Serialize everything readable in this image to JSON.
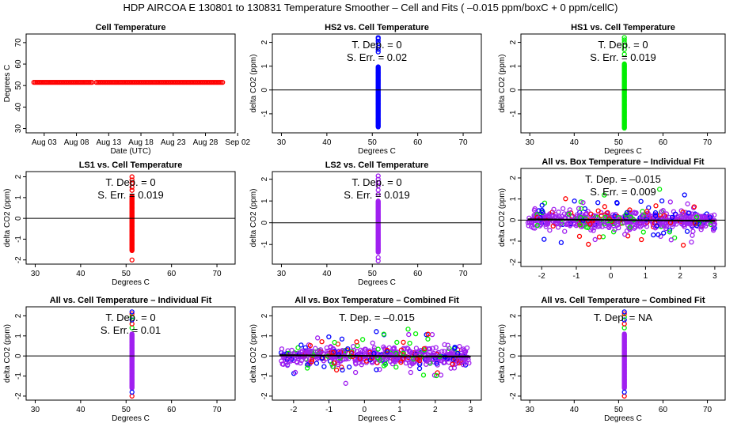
{
  "suptitle": "HDP   AIRCOA E   130801 to 130831   Temperature Smoother – Cell and Fits ( –0.015  ppm/boxC +  0  ppm/cellC)",
  "colors": {
    "red": "#ff0000",
    "blue": "#0000ff",
    "green": "#00ee00",
    "purple": "#a020f0",
    "axis": "#000000"
  },
  "chart_data": [
    {
      "type": "scatter",
      "title": "Cell Temperature",
      "xlabel": "Date (UTC)",
      "ylabel": "Degrees C",
      "x_ticks": [
        "Aug 03",
        "Aug 08",
        "Aug 13",
        "Aug 18",
        "Aug 23",
        "Aug 28",
        "Sep 02"
      ],
      "xlim": [
        0.2,
        32.6
      ],
      "ylim": [
        28,
        74
      ],
      "y_ticks": [
        30,
        40,
        50,
        60,
        70
      ],
      "series": [
        {
          "name": "cell temperature",
          "color": "red",
          "x_start": 1.4,
          "x_end": 30.8,
          "y": 51.5,
          "gap": [
            10.5,
            11.0
          ]
        }
      ],
      "annotations": []
    },
    {
      "type": "scatter",
      "title": "HS2 vs. Cell Temperature",
      "xlabel": "Degrees C",
      "ylabel": "delta CO2 (ppm)",
      "xlim": [
        28,
        74
      ],
      "ylim": [
        -1.8,
        2.35
      ],
      "x_ticks": [
        30,
        40,
        50,
        60,
        70
      ],
      "y_ticks": [
        -1,
        0,
        1,
        2
      ],
      "hline": 0,
      "series": [
        {
          "name": "HS2",
          "color": "blue",
          "x": 51.3,
          "y_range": [
            -1.55,
            1.0
          ],
          "extra_y": [
            1.6,
            1.7,
            1.8,
            1.95,
            2.05,
            2.15,
            2.2
          ]
        }
      ],
      "annotations": [
        "T. Dep. =  0",
        "S. Err. =  0.02"
      ]
    },
    {
      "type": "scatter",
      "title": "HS1 vs. Cell Temperature",
      "xlabel": "Degrees C",
      "ylabel": "delta CO2 (ppm)",
      "xlim": [
        28,
        74
      ],
      "ylim": [
        -1.8,
        2.35
      ],
      "x_ticks": [
        30,
        40,
        50,
        60,
        70
      ],
      "y_ticks": [
        -1,
        0,
        1,
        2
      ],
      "hline": 0,
      "series": [
        {
          "name": "HS1",
          "color": "green",
          "x": 51.3,
          "y_range": [
            -1.6,
            1.1
          ],
          "extra_y": [
            1.5,
            1.7,
            1.85,
            2.0,
            2.1,
            2.2
          ]
        }
      ],
      "annotations": [
        "T. Dep. =  0",
        "S. Err. =  0.019"
      ]
    },
    {
      "type": "scatter",
      "title": "LS1 vs. Cell Temperature",
      "xlabel": "Degrees C",
      "ylabel": "delta CO2 (ppm)",
      "xlim": [
        28,
        74
      ],
      "ylim": [
        -2.2,
        2.25
      ],
      "x_ticks": [
        30,
        40,
        50,
        60,
        70
      ],
      "y_ticks": [
        -2,
        -1,
        0,
        1,
        2
      ],
      "hline": 0,
      "series": [
        {
          "name": "LS1",
          "color": "red",
          "x": 51.3,
          "y_range": [
            -1.55,
            1.1
          ],
          "extra_y": [
            -2.0,
            1.35,
            1.5,
            1.7,
            1.85,
            2.0
          ]
        }
      ],
      "annotations": [
        "T. Dep. =  0",
        "S. Err. =  0.019"
      ]
    },
    {
      "type": "scatter",
      "title": "LS2 vs. Cell Temperature",
      "xlabel": "Degrees C",
      "ylabel": "delta CO2 (ppm)",
      "xlim": [
        28,
        74
      ],
      "ylim": [
        -1.9,
        2.35
      ],
      "x_ticks": [
        30,
        40,
        50,
        60,
        70
      ],
      "y_ticks": [
        -1,
        0,
        1,
        2
      ],
      "hline": 0,
      "series": [
        {
          "name": "LS2",
          "color": "purple",
          "x": 51.3,
          "y_range": [
            -1.35,
            1.0
          ],
          "extra_y": [
            -1.75,
            -1.6,
            1.3,
            1.5,
            1.7,
            1.85,
            2.0,
            2.15
          ]
        }
      ],
      "annotations": [
        "T. Dep. =  0",
        "S. Err. =  0.019"
      ]
    },
    {
      "type": "scatter",
      "title": "All vs. Box Temperature – Individual Fit",
      "xlabel": "",
      "ylabel": "delta CO2 (ppm)",
      "xlim": [
        -2.6,
        3.3
      ],
      "ylim": [
        -2.2,
        2.45
      ],
      "x_ticks": [
        -2,
        -1,
        0,
        1,
        2,
        3
      ],
      "y_ticks": [
        -2,
        -1,
        0,
        1,
        2
      ],
      "hline": 0,
      "fit_line": {
        "x": [
          -2.4,
          3.0
        ],
        "y": [
          0.04,
          -0.04
        ]
      },
      "cloud": {
        "x_range": [
          -2.4,
          3.0
        ],
        "core_sd": 0.22,
        "spread": 1.6,
        "seed": 11
      },
      "series": [
        {
          "name": "HS2",
          "color": "blue"
        },
        {
          "name": "HS1",
          "color": "green"
        },
        {
          "name": "LS1",
          "color": "red"
        },
        {
          "name": "LS2",
          "color": "purple"
        }
      ],
      "annotations": [
        "T. Dep. =  –0.015",
        "S. Err. =  0.009"
      ]
    },
    {
      "type": "scatter",
      "title": "All vs. Cell Temperature – Individual Fit",
      "xlabel": "Degrees C",
      "ylabel": "delta CO2 (ppm)",
      "xlim": [
        28,
        74
      ],
      "ylim": [
        -2.2,
        2.45
      ],
      "x_ticks": [
        30,
        40,
        50,
        60,
        70
      ],
      "y_ticks": [
        -2,
        -1,
        0,
        1,
        2
      ],
      "hline": 0,
      "series": [
        {
          "name": "all",
          "color": "purple",
          "x": 51.3,
          "y_range": [
            -1.6,
            1.1
          ],
          "extra_y": [
            -2.0,
            -1.8,
            1.4,
            1.6,
            1.8,
            1.95,
            2.1,
            2.2
          ],
          "edge_colors": [
            "red",
            "blue",
            "green"
          ]
        }
      ],
      "annotations": [
        "T. Dep. =  0",
        "S. Err. =  0.01"
      ]
    },
    {
      "type": "scatter",
      "title": "All vs. Box Temperature – Combined Fit",
      "xlabel": "Degrees C",
      "ylabel": "delta CO2 (ppm)",
      "xlim": [
        -2.6,
        3.3
      ],
      "ylim": [
        -2.2,
        2.45
      ],
      "x_ticks": [
        -2,
        -1,
        0,
        1,
        2,
        3
      ],
      "y_ticks": [
        -2,
        -1,
        0,
        1,
        2
      ],
      "hline": 0,
      "fit_line": {
        "x": [
          -2.4,
          3.0
        ],
        "y": [
          0.04,
          -0.04
        ]
      },
      "cloud": {
        "x_range": [
          -2.4,
          3.0
        ],
        "core_sd": 0.22,
        "spread": 1.6,
        "seed": 29
      },
      "series": [
        {
          "name": "HS2",
          "color": "blue"
        },
        {
          "name": "HS1",
          "color": "green"
        },
        {
          "name": "LS1",
          "color": "red"
        },
        {
          "name": "LS2",
          "color": "purple"
        }
      ],
      "annotations": [
        "T. Dep. =  –0.015"
      ]
    },
    {
      "type": "scatter",
      "title": "All vs. Cell Temperature – Combined Fit",
      "xlabel": "Degrees C",
      "ylabel": "delta CO2 (ppm)",
      "xlim": [
        28,
        74
      ],
      "ylim": [
        -2.2,
        2.45
      ],
      "x_ticks": [
        30,
        40,
        50,
        60,
        70
      ],
      "y_ticks": [
        -2,
        -1,
        0,
        1,
        2
      ],
      "hline": 0,
      "series": [
        {
          "name": "all",
          "color": "purple",
          "x": 51.3,
          "y_range": [
            -1.6,
            1.1
          ],
          "extra_y": [
            -2.0,
            -1.8,
            1.4,
            1.6,
            1.8,
            1.95,
            2.1,
            2.2
          ],
          "edge_colors": [
            "red",
            "blue",
            "green"
          ]
        }
      ],
      "annotations": [
        "T. Dep. =  NA"
      ]
    }
  ]
}
